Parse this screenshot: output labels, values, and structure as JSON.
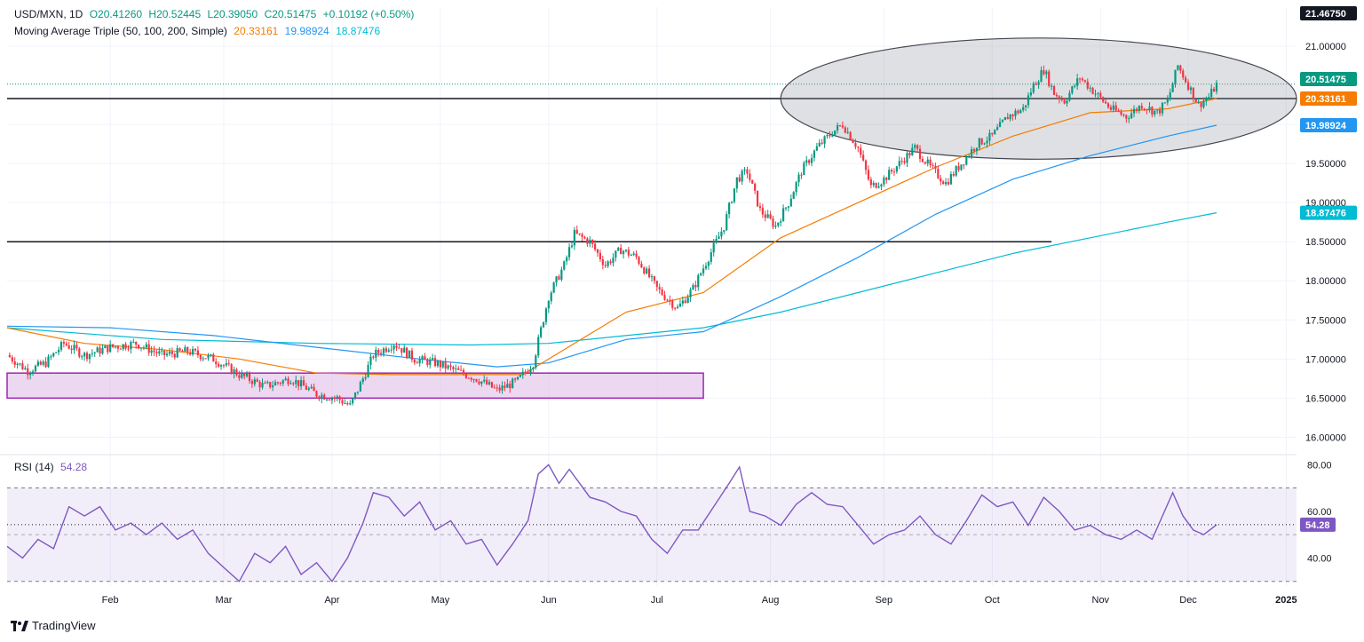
{
  "header": {
    "symbol": "USD/MXN, 1D",
    "open": "O20.41260",
    "high": "H20.52445",
    "low": "L20.39050",
    "close": "C20.51475",
    "change": "+0.10192 (+0.50%)",
    "ma_title": "Moving Average Triple (50, 100, 200, Simple)",
    "ma_values": [
      "20.33161",
      "19.98924",
      "18.87476"
    ]
  },
  "rsi_header": {
    "title": "RSI (14)",
    "value": "54.28"
  },
  "brand": {
    "name": "TradingView",
    "logo_icon": "tradingview-logo-icon"
  },
  "colors": {
    "up": "#089981",
    "down": "#f23645",
    "ma50": "#f57c00",
    "ma100": "#2196f3",
    "ma200": "#00bcd4",
    "rsi": "#7e57c2",
    "zone": "#e1bee7",
    "zone_border": "#9c27b0"
  },
  "chart_data": [
    {
      "type": "candlestick",
      "title": "USD/MXN, 1D",
      "y_ticks": [
        "16.00000",
        "16.50000",
        "17.00000",
        "17.50000",
        "18.00000",
        "18.50000",
        "19.00000",
        "19.50000",
        "20.00000",
        "21.00000"
      ],
      "y_range": [
        15.8,
        21.5
      ],
      "x_labels": [
        "Feb",
        "Mar",
        "Apr",
        "May",
        "Jun",
        "Jul",
        "Aug",
        "Sep",
        "Oct",
        "Nov",
        "Dec",
        "2025"
      ],
      "price_labels": {
        "top": "21.46750",
        "last": "20.51475",
        "ma50": "20.33161",
        "ma100": "19.98924",
        "ma200": "18.87476"
      },
      "last_price": 20.51475,
      "horizontal_lines": [
        20.33,
        18.5
      ],
      "support_zone": [
        16.5,
        16.82
      ],
      "series_close": [
        [
          0,
          17.05
        ],
        [
          8,
          16.85
        ],
        [
          15,
          16.95
        ],
        [
          22,
          17.2
        ],
        [
          30,
          17.05
        ],
        [
          40,
          17.15
        ],
        [
          50,
          17.2
        ],
        [
          60,
          17.05
        ],
        [
          70,
          17.1
        ],
        [
          80,
          17.0
        ],
        [
          90,
          16.8
        ],
        [
          100,
          16.65
        ],
        [
          110,
          16.75
        ],
        [
          120,
          16.55
        ],
        [
          128,
          16.5
        ],
        [
          133,
          16.4
        ],
        [
          138,
          16.75
        ],
        [
          142,
          17.05
        ],
        [
          150,
          17.2
        ],
        [
          158,
          17.0
        ],
        [
          166,
          16.95
        ],
        [
          174,
          16.85
        ],
        [
          182,
          16.75
        ],
        [
          190,
          16.6
        ],
        [
          198,
          16.72
        ],
        [
          204,
          16.95
        ],
        [
          210,
          17.8
        ],
        [
          216,
          18.2
        ],
        [
          220,
          18.6
        ],
        [
          226,
          18.5
        ],
        [
          232,
          18.2
        ],
        [
          238,
          18.4
        ],
        [
          244,
          18.3
        ],
        [
          252,
          17.9
        ],
        [
          260,
          17.65
        ],
        [
          266,
          17.9
        ],
        [
          272,
          18.3
        ],
        [
          278,
          18.7
        ],
        [
          283,
          19.3
        ],
        [
          287,
          19.4
        ],
        [
          292,
          18.9
        ],
        [
          298,
          18.7
        ],
        [
          303,
          19.0
        ],
        [
          308,
          19.4
        ],
        [
          314,
          19.7
        ],
        [
          320,
          19.9
        ],
        [
          324,
          20.0
        ],
        [
          330,
          19.7
        ],
        [
          335,
          19.2
        ],
        [
          340,
          19.3
        ],
        [
          346,
          19.5
        ],
        [
          352,
          19.7
        ],
        [
          358,
          19.45
        ],
        [
          364,
          19.25
        ],
        [
          370,
          19.5
        ],
        [
          376,
          19.75
        ],
        [
          382,
          19.85
        ],
        [
          388,
          20.1
        ],
        [
          394,
          20.2
        ],
        [
          398,
          20.5
        ],
        [
          402,
          20.7
        ],
        [
          406,
          20.4
        ],
        [
          410,
          20.3
        ],
        [
          416,
          20.6
        ],
        [
          422,
          20.4
        ],
        [
          428,
          20.2
        ],
        [
          434,
          20.1
        ],
        [
          440,
          20.25
        ],
        [
          446,
          20.15
        ],
        [
          450,
          20.3
        ],
        [
          454,
          20.75
        ],
        [
          458,
          20.5
        ],
        [
          462,
          20.25
        ],
        [
          466,
          20.35
        ],
        [
          469,
          20.51
        ]
      ],
      "ma50": [
        [
          0,
          17.4
        ],
        [
          30,
          17.2
        ],
        [
          60,
          17.12
        ],
        [
          90,
          17.0
        ],
        [
          120,
          16.82
        ],
        [
          150,
          16.8
        ],
        [
          180,
          16.8
        ],
        [
          200,
          16.8
        ],
        [
          215,
          17.1
        ],
        [
          240,
          17.6
        ],
        [
          270,
          17.85
        ],
        [
          300,
          18.55
        ],
        [
          330,
          19.0
        ],
        [
          360,
          19.45
        ],
        [
          390,
          19.85
        ],
        [
          420,
          20.15
        ],
        [
          450,
          20.2
        ],
        [
          469,
          20.33
        ]
      ],
      "ma100": [
        [
          0,
          17.42
        ],
        [
          40,
          17.4
        ],
        [
          80,
          17.3
        ],
        [
          120,
          17.15
        ],
        [
          160,
          17.0
        ],
        [
          190,
          16.9
        ],
        [
          210,
          16.95
        ],
        [
          240,
          17.25
        ],
        [
          270,
          17.35
        ],
        [
          300,
          17.8
        ],
        [
          330,
          18.3
        ],
        [
          360,
          18.85
        ],
        [
          390,
          19.3
        ],
        [
          420,
          19.6
        ],
        [
          450,
          19.85
        ],
        [
          469,
          19.99
        ]
      ],
      "ma200": [
        [
          0,
          17.4
        ],
        [
          60,
          17.25
        ],
        [
          120,
          17.2
        ],
        [
          180,
          17.18
        ],
        [
          210,
          17.2
        ],
        [
          240,
          17.3
        ],
        [
          270,
          17.4
        ],
        [
          300,
          17.6
        ],
        [
          330,
          17.85
        ],
        [
          360,
          18.1
        ],
        [
          390,
          18.35
        ],
        [
          420,
          18.55
        ],
        [
          450,
          18.75
        ],
        [
          469,
          18.87
        ]
      ]
    },
    {
      "type": "line",
      "title": "RSI (14)",
      "y_ticks": [
        "80.00",
        "60.00",
        "40.00"
      ],
      "y_range": [
        28,
        82
      ],
      "bands": [
        70,
        30
      ],
      "mid_line": 50,
      "last_value": 54.28,
      "last_label": "54.28",
      "values": [
        [
          0,
          45
        ],
        [
          6,
          40
        ],
        [
          12,
          48
        ],
        [
          18,
          44
        ],
        [
          24,
          62
        ],
        [
          30,
          58
        ],
        [
          36,
          62
        ],
        [
          42,
          52
        ],
        [
          48,
          55
        ],
        [
          54,
          50
        ],
        [
          60,
          55
        ],
        [
          66,
          48
        ],
        [
          72,
          52
        ],
        [
          78,
          42
        ],
        [
          84,
          36
        ],
        [
          90,
          30
        ],
        [
          96,
          42
        ],
        [
          102,
          38
        ],
        [
          108,
          45
        ],
        [
          114,
          33
        ],
        [
          120,
          38
        ],
        [
          126,
          30
        ],
        [
          132,
          40
        ],
        [
          138,
          55
        ],
        [
          142,
          68
        ],
        [
          148,
          66
        ],
        [
          154,
          58
        ],
        [
          160,
          64
        ],
        [
          166,
          52
        ],
        [
          172,
          56
        ],
        [
          178,
          46
        ],
        [
          184,
          48
        ],
        [
          190,
          37
        ],
        [
          196,
          46
        ],
        [
          202,
          56
        ],
        [
          206,
          76
        ],
        [
          210,
          80
        ],
        [
          214,
          72
        ],
        [
          218,
          78
        ],
        [
          222,
          72
        ],
        [
          226,
          66
        ],
        [
          232,
          64
        ],
        [
          238,
          60
        ],
        [
          244,
          58
        ],
        [
          250,
          48
        ],
        [
          256,
          42
        ],
        [
          262,
          52
        ],
        [
          268,
          52
        ],
        [
          274,
          62
        ],
        [
          280,
          72
        ],
        [
          284,
          79
        ],
        [
          288,
          60
        ],
        [
          294,
          58
        ],
        [
          300,
          54
        ],
        [
          306,
          63
        ],
        [
          312,
          68
        ],
        [
          318,
          63
        ],
        [
          324,
          62
        ],
        [
          330,
          54
        ],
        [
          336,
          46
        ],
        [
          342,
          50
        ],
        [
          348,
          52
        ],
        [
          354,
          58
        ],
        [
          360,
          50
        ],
        [
          366,
          46
        ],
        [
          372,
          56
        ],
        [
          378,
          67
        ],
        [
          384,
          62
        ],
        [
          390,
          64
        ],
        [
          396,
          54
        ],
        [
          402,
          66
        ],
        [
          408,
          60
        ],
        [
          414,
          52
        ],
        [
          420,
          54
        ],
        [
          426,
          50
        ],
        [
          432,
          48
        ],
        [
          438,
          52
        ],
        [
          444,
          48
        ],
        [
          448,
          58
        ],
        [
          452,
          68
        ],
        [
          456,
          58
        ],
        [
          460,
          52
        ],
        [
          464,
          50
        ],
        [
          469,
          54.28
        ]
      ]
    }
  ]
}
